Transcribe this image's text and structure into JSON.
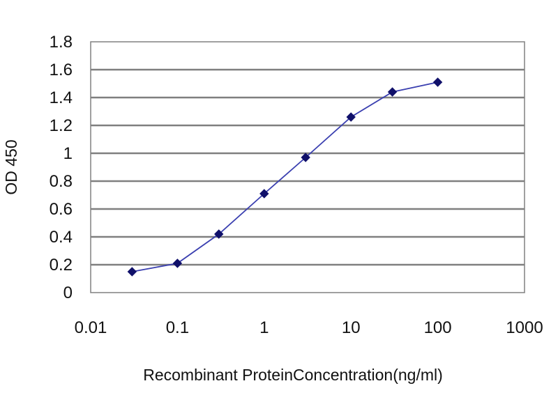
{
  "chart_data": {
    "type": "line",
    "title": "",
    "xlabel": "Recombinant ProteinConcentration(ng/ml)",
    "ylabel": "OD 450",
    "x_scale": "log",
    "xlim": [
      0.01,
      1000
    ],
    "ylim": [
      0,
      1.8
    ],
    "x_tick_labels": [
      "0.01",
      "0.1",
      "1",
      "10",
      "100",
      "1000"
    ],
    "y_tick_labels": [
      "0",
      "0.2",
      "0.4",
      "0.6",
      "0.8",
      "1",
      "1.2",
      "1.4",
      "1.6",
      "1.8"
    ],
    "grid": "horizontal",
    "legend": "none",
    "series": [
      {
        "x": [
          0.03,
          0.1,
          0.3,
          1,
          3,
          10,
          30,
          100
        ],
        "y": [
          0.15,
          0.21,
          0.42,
          0.71,
          0.97,
          1.26,
          1.44,
          1.51
        ]
      }
    ],
    "colors": {
      "line": "#3a3fb0",
      "marker": "#10106a",
      "grid": "#7f7f7f",
      "plot_background": "#ffffff"
    }
  }
}
